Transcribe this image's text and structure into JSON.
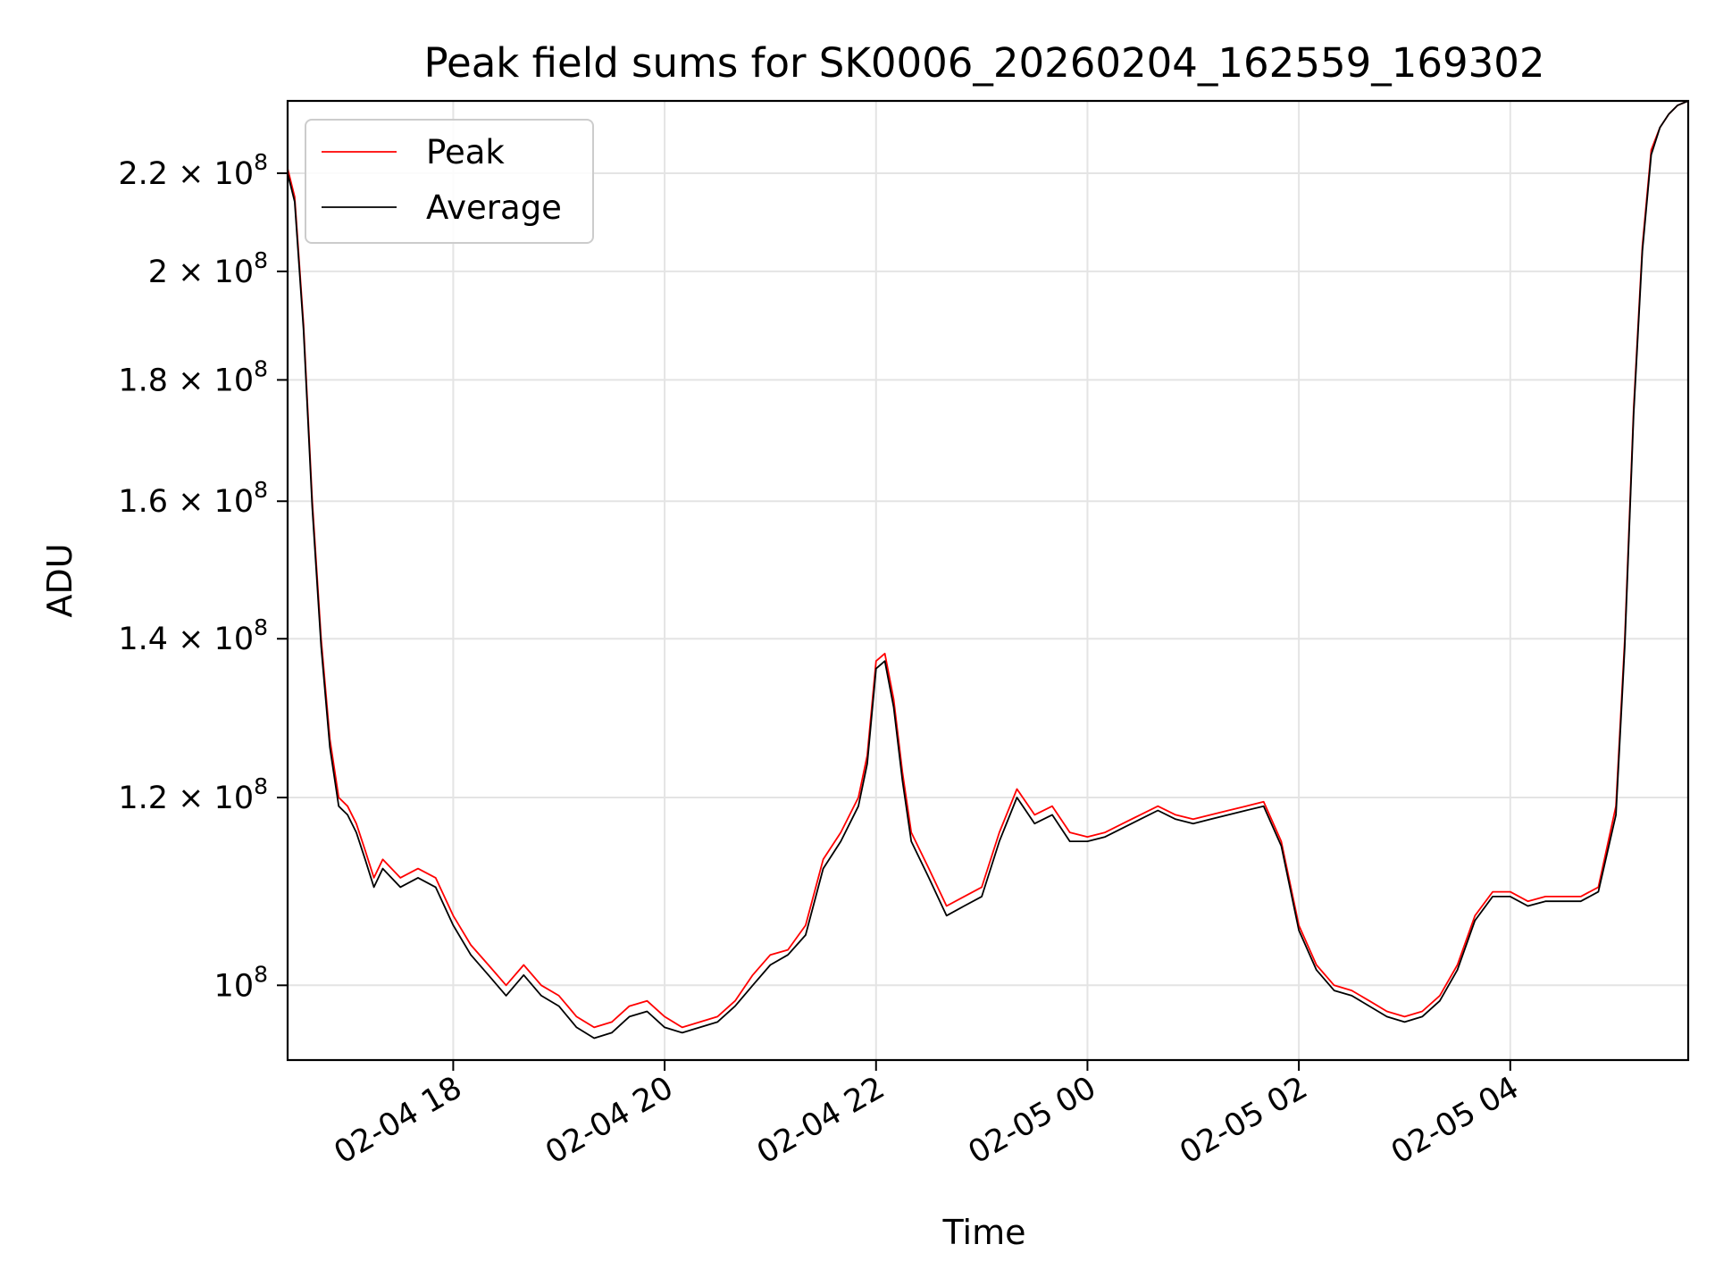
{
  "chart_data": {
    "type": "line",
    "title": "Peak field sums for SK0006_20260204_162559_169302",
    "xlabel": "Time",
    "ylabel": "ADU",
    "y_scale": "log",
    "ylim": [
      93000000.0,
      236000000.0
    ],
    "xlim": [
      "2026-02-04 16:26",
      "2026-02-05 05:41"
    ],
    "grid": true,
    "legend_position": "upper-left",
    "x_tick_labels": [
      "02-04 18",
      "02-04 20",
      "02-04 22",
      "02-05 00",
      "02-05 02",
      "02-05 04"
    ],
    "x_ticks": [
      "2026-02-04 18:00",
      "2026-02-04 20:00",
      "2026-02-04 22:00",
      "2026-02-05 00:00",
      "2026-02-05 02:00",
      "2026-02-05 04:00"
    ],
    "y_ticks": [
      {
        "value": 100000000.0,
        "base": "10",
        "exp": "8"
      },
      {
        "value": 120000000.0,
        "base": "1.2 × 10",
        "exp": "8"
      },
      {
        "value": 140000000.0,
        "base": "1.4 × 10",
        "exp": "8"
      },
      {
        "value": 160000000.0,
        "base": "1.6 × 10",
        "exp": "8"
      },
      {
        "value": 180000000.0,
        "base": "1.8 × 10",
        "exp": "8"
      },
      {
        "value": 200000000.0,
        "base": "2 × 10",
        "exp": "8"
      },
      {
        "value": 220000000.0,
        "base": "2.2 × 10",
        "exp": "8"
      }
    ],
    "series": [
      {
        "name": "Peak",
        "color": "#ff0000",
        "x": [
          "2026-02-04 16:26",
          "2026-02-04 16:30",
          "2026-02-04 16:35",
          "2026-02-04 16:40",
          "2026-02-04 16:45",
          "2026-02-04 16:50",
          "2026-02-04 16:55",
          "2026-02-04 17:00",
          "2026-02-04 17:05",
          "2026-02-04 17:10",
          "2026-02-04 17:15",
          "2026-02-04 17:20",
          "2026-02-04 17:30",
          "2026-02-04 17:40",
          "2026-02-04 17:50",
          "2026-02-04 18:00",
          "2026-02-04 18:10",
          "2026-02-04 18:20",
          "2026-02-04 18:30",
          "2026-02-04 18:40",
          "2026-02-04 18:50",
          "2026-02-04 19:00",
          "2026-02-04 19:10",
          "2026-02-04 19:20",
          "2026-02-04 19:30",
          "2026-02-04 19:40",
          "2026-02-04 19:50",
          "2026-02-04 20:00",
          "2026-02-04 20:10",
          "2026-02-04 20:20",
          "2026-02-04 20:30",
          "2026-02-04 20:40",
          "2026-02-04 20:50",
          "2026-02-04 21:00",
          "2026-02-04 21:10",
          "2026-02-04 21:20",
          "2026-02-04 21:30",
          "2026-02-04 21:40",
          "2026-02-04 21:50",
          "2026-02-04 21:55",
          "2026-02-04 22:00",
          "2026-02-04 22:05",
          "2026-02-04 22:10",
          "2026-02-04 22:15",
          "2026-02-04 22:20",
          "2026-02-04 22:30",
          "2026-02-04 22:40",
          "2026-02-04 22:50",
          "2026-02-04 23:00",
          "2026-02-04 23:10",
          "2026-02-04 23:20",
          "2026-02-04 23:30",
          "2026-02-04 23:40",
          "2026-02-04 23:50",
          "2026-02-05 00:00",
          "2026-02-05 00:10",
          "2026-02-05 00:20",
          "2026-02-05 00:30",
          "2026-02-05 00:40",
          "2026-02-05 00:50",
          "2026-02-05 01:00",
          "2026-02-05 01:10",
          "2026-02-05 01:20",
          "2026-02-05 01:30",
          "2026-02-05 01:40",
          "2026-02-05 01:50",
          "2026-02-05 02:00",
          "2026-02-05 02:10",
          "2026-02-05 02:20",
          "2026-02-05 02:30",
          "2026-02-05 02:40",
          "2026-02-05 02:50",
          "2026-02-05 03:00",
          "2026-02-05 03:10",
          "2026-02-05 03:20",
          "2026-02-05 03:30",
          "2026-02-05 03:40",
          "2026-02-05 03:50",
          "2026-02-05 04:00",
          "2026-02-05 04:10",
          "2026-02-05 04:20",
          "2026-02-05 04:30",
          "2026-02-05 04:40",
          "2026-02-05 04:50",
          "2026-02-05 05:00",
          "2026-02-05 05:05",
          "2026-02-05 05:10",
          "2026-02-05 05:15",
          "2026-02-05 05:20",
          "2026-02-05 05:25",
          "2026-02-05 05:30",
          "2026-02-05 05:35",
          "2026-02-05 05:41"
        ],
        "values": [
          221000000.0,
          215000000.0,
          190000000.0,
          160000000.0,
          140000000.0,
          127000000.0,
          120000000.0,
          119000000.0,
          117000000.0,
          114000000.0,
          111000000.0,
          113000000.0,
          111000000.0,
          112000000.0,
          111000000.0,
          107000000.0,
          104000000.0,
          102000000.0,
          100000000.0,
          102000000.0,
          100000000.0,
          99000000.0,
          97000000.0,
          96000000.0,
          96500000.0,
          98000000.0,
          98500000.0,
          97000000.0,
          96000000.0,
          96500000.0,
          97000000.0,
          98500000.0,
          101000000.0,
          103000000.0,
          103500000.0,
          106000000.0,
          113000000.0,
          116000000.0,
          120000000.0,
          125000000.0,
          137000000.0,
          138000000.0,
          132000000.0,
          123000000.0,
          116000000.0,
          112000000.0,
          108000000.0,
          109000000.0,
          110000000.0,
          116000000.0,
          121000000.0,
          118000000.0,
          119000000.0,
          116000000.0,
          115500000.0,
          116000000.0,
          117000000.0,
          118000000.0,
          119000000.0,
          118000000.0,
          117500000.0,
          118000000.0,
          118500000.0,
          119000000.0,
          119500000.0,
          115000000.0,
          106000000.0,
          102000000.0,
          100000000.0,
          99500000.0,
          98500000.0,
          97500000.0,
          97000000.0,
          97500000.0,
          99000000.0,
          102000000.0,
          107000000.0,
          109500000.0,
          109500000.0,
          108500000.0,
          109000000.0,
          109000000.0,
          109000000.0,
          110000000.0,
          119000000.0,
          140000000.0,
          175000000.0,
          205000000.0,
          225000000.0,
          230000000.0,
          233000000.0,
          235000000.0,
          236000000.0
        ]
      },
      {
        "name": "Average",
        "color": "#000000",
        "x": [
          "2026-02-04 16:26",
          "2026-02-04 16:30",
          "2026-02-04 16:35",
          "2026-02-04 16:40",
          "2026-02-04 16:45",
          "2026-02-04 16:50",
          "2026-02-04 16:55",
          "2026-02-04 17:00",
          "2026-02-04 17:05",
          "2026-02-04 17:10",
          "2026-02-04 17:15",
          "2026-02-04 17:20",
          "2026-02-04 17:30",
          "2026-02-04 17:40",
          "2026-02-04 17:50",
          "2026-02-04 18:00",
          "2026-02-04 18:10",
          "2026-02-04 18:20",
          "2026-02-04 18:30",
          "2026-02-04 18:40",
          "2026-02-04 18:50",
          "2026-02-04 19:00",
          "2026-02-04 19:10",
          "2026-02-04 19:20",
          "2026-02-04 19:30",
          "2026-02-04 19:40",
          "2026-02-04 19:50",
          "2026-02-04 20:00",
          "2026-02-04 20:10",
          "2026-02-04 20:20",
          "2026-02-04 20:30",
          "2026-02-04 20:40",
          "2026-02-04 20:50",
          "2026-02-04 21:00",
          "2026-02-04 21:10",
          "2026-02-04 21:20",
          "2026-02-04 21:30",
          "2026-02-04 21:40",
          "2026-02-04 21:50",
          "2026-02-04 21:55",
          "2026-02-04 22:00",
          "2026-02-04 22:05",
          "2026-02-04 22:10",
          "2026-02-04 22:15",
          "2026-02-04 22:20",
          "2026-02-04 22:30",
          "2026-02-04 22:40",
          "2026-02-04 22:50",
          "2026-02-04 23:00",
          "2026-02-04 23:10",
          "2026-02-04 23:20",
          "2026-02-04 23:30",
          "2026-02-04 23:40",
          "2026-02-04 23:50",
          "2026-02-05 00:00",
          "2026-02-05 00:10",
          "2026-02-05 00:20",
          "2026-02-05 00:30",
          "2026-02-05 00:40",
          "2026-02-05 00:50",
          "2026-02-05 01:00",
          "2026-02-05 01:10",
          "2026-02-05 01:20",
          "2026-02-05 01:30",
          "2026-02-05 01:40",
          "2026-02-05 01:50",
          "2026-02-05 02:00",
          "2026-02-05 02:10",
          "2026-02-05 02:20",
          "2026-02-05 02:30",
          "2026-02-05 02:40",
          "2026-02-05 02:50",
          "2026-02-05 03:00",
          "2026-02-05 03:10",
          "2026-02-05 03:20",
          "2026-02-05 03:30",
          "2026-02-05 03:40",
          "2026-02-05 03:50",
          "2026-02-05 04:00",
          "2026-02-05 04:10",
          "2026-02-05 04:20",
          "2026-02-05 04:30",
          "2026-02-05 04:40",
          "2026-02-05 04:50",
          "2026-02-05 05:00",
          "2026-02-05 05:05",
          "2026-02-05 05:10",
          "2026-02-05 05:15",
          "2026-02-05 05:20",
          "2026-02-05 05:25",
          "2026-02-05 05:30",
          "2026-02-05 05:35",
          "2026-02-05 05:41"
        ],
        "values": [
          220000000.0,
          214000000.0,
          189000000.0,
          159000000.0,
          139000000.0,
          126000000.0,
          119000000.0,
          118000000.0,
          116000000.0,
          113000000.0,
          110000000.0,
          112000000.0,
          110000000.0,
          111000000.0,
          110000000.0,
          106000000.0,
          103000000.0,
          101000000.0,
          99000000.0,
          101000000.0,
          99000000.0,
          98000000.0,
          96000000.0,
          95000000.0,
          95500000.0,
          97000000.0,
          97500000.0,
          96000000.0,
          95500000.0,
          96000000.0,
          96500000.0,
          98000000.0,
          100000000.0,
          102000000.0,
          103000000.0,
          105000000.0,
          112000000.0,
          115000000.0,
          119000000.0,
          124000000.0,
          136000000.0,
          137000000.0,
          131000000.0,
          122000000.0,
          115000000.0,
          111000000.0,
          107000000.0,
          108000000.0,
          109000000.0,
          115000000.0,
          120000000.0,
          117000000.0,
          118000000.0,
          115000000.0,
          115000000.0,
          115500000.0,
          116500000.0,
          117500000.0,
          118500000.0,
          117500000.0,
          117000000.0,
          117500000.0,
          118000000.0,
          118500000.0,
          119000000.0,
          114500000.0,
          105500000.0,
          101500000.0,
          99500000.0,
          99000000.0,
          98000000.0,
          97000000.0,
          96500000.0,
          97000000.0,
          98500000.0,
          101500000.0,
          106500000.0,
          109000000.0,
          109000000.0,
          108000000.0,
          108500000.0,
          108500000.0,
          108500000.0,
          109500000.0,
          118000000.0,
          139000000.0,
          174000000.0,
          204000000.0,
          224000000.0,
          230000000.0,
          233000000.0,
          235000000.0,
          236000000.0
        ]
      }
    ]
  }
}
